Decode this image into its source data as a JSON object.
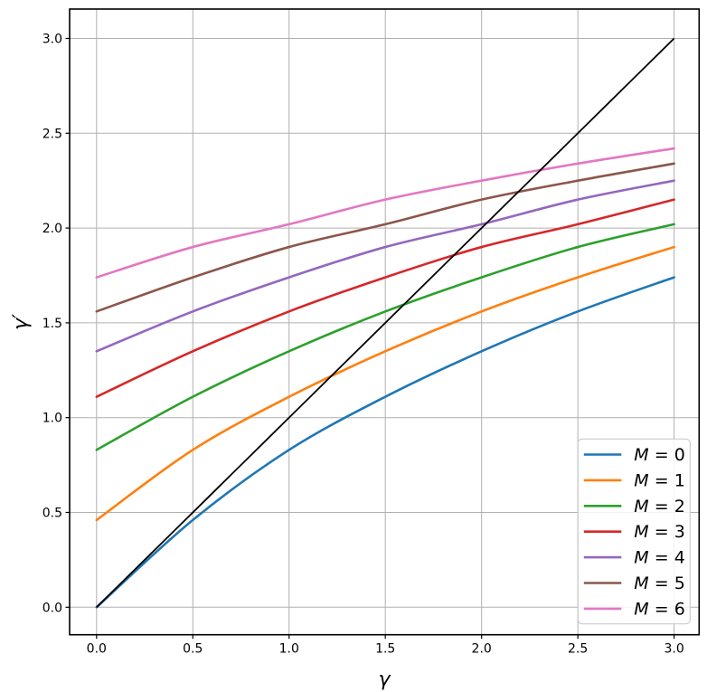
{
  "chart_data": {
    "type": "line",
    "title": "",
    "xlabel": "γ",
    "ylabel": "γ′",
    "grid": true,
    "grid_color": "#b0b0b0",
    "background_color": "#ffffff",
    "xlim": [
      -0.14,
      3.13
    ],
    "ylim": [
      -0.145,
      3.155
    ],
    "x_ticks": {
      "values": [
        0,
        0.5,
        1,
        1.5,
        2,
        2.5,
        3
      ],
      "labels": [
        "0.0",
        "0.5",
        "1.0",
        "1.5",
        "2.0",
        "2.5",
        "3.0"
      ]
    },
    "y_ticks": {
      "values": [
        0,
        0.5,
        1,
        1.5,
        2,
        2.5,
        3
      ],
      "labels": [
        "0.0",
        "0.5",
        "1.0",
        "1.5",
        "2.0",
        "2.5",
        "3.0"
      ]
    },
    "x": [
      0,
      0.5,
      1,
      1.5,
      2,
      2.5,
      3
    ],
    "series": [
      {
        "label": "M = 0",
        "color": "#1f77b4",
        "values": [
          0.0,
          0.46,
          0.83,
          1.11,
          1.35,
          1.56,
          1.74
        ]
      },
      {
        "label": "M = 1",
        "color": "#ff7f0e",
        "values": [
          0.46,
          0.83,
          1.11,
          1.35,
          1.56,
          1.74,
          1.9
        ]
      },
      {
        "label": "M = 2",
        "color": "#2ca02c",
        "values": [
          0.83,
          1.11,
          1.35,
          1.56,
          1.74,
          1.9,
          2.02
        ]
      },
      {
        "label": "M = 3",
        "color": "#d62728",
        "values": [
          1.11,
          1.35,
          1.56,
          1.74,
          1.9,
          2.02,
          2.15
        ]
      },
      {
        "label": "M = 4",
        "color": "#9467bd",
        "values": [
          1.35,
          1.56,
          1.74,
          1.9,
          2.02,
          2.15,
          2.25
        ]
      },
      {
        "label": "M = 5",
        "color": "#8c564b",
        "values": [
          1.56,
          1.74,
          1.9,
          2.02,
          2.15,
          2.25,
          2.34
        ]
      },
      {
        "label": "M = 6",
        "color": "#e377c2",
        "values": [
          1.74,
          1.9,
          2.02,
          2.15,
          2.25,
          2.34,
          2.42
        ]
      }
    ],
    "reference_line": {
      "name": "identity-line",
      "color": "#000000",
      "x": [
        0,
        3
      ],
      "y": [
        0,
        3
      ]
    },
    "legend_position": "lower right"
  }
}
